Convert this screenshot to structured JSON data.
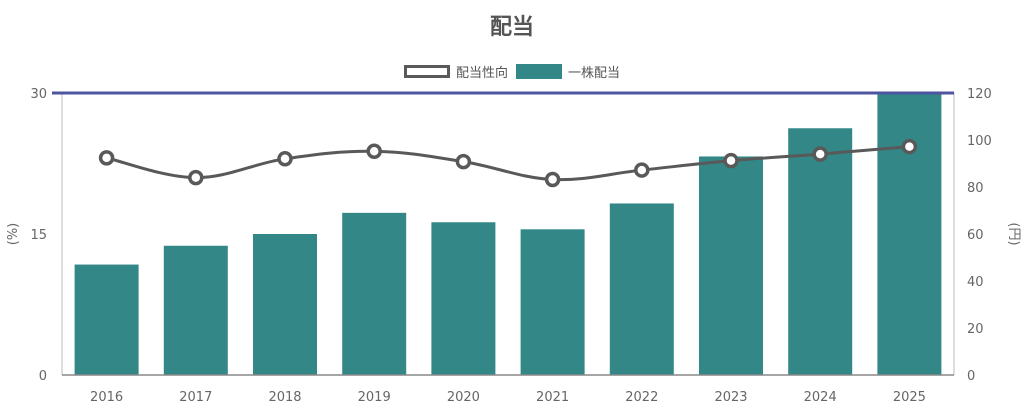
{
  "chart_data": {
    "type": "bar",
    "title": "配当",
    "categories": [
      "2016",
      "2017",
      "2018",
      "2019",
      "2020",
      "2021",
      "2022",
      "2023",
      "2024",
      "2025"
    ],
    "series": [
      {
        "name": "配当性向",
        "type": "line",
        "axis": "left",
        "values": [
          23.1,
          21.0,
          23.0,
          23.8,
          22.7,
          20.8,
          21.8,
          22.8,
          23.5,
          24.3
        ]
      },
      {
        "name": "一株配当",
        "type": "bar",
        "axis": "right",
        "values": [
          47,
          55,
          60,
          69,
          65,
          62,
          73,
          93,
          105,
          120
        ]
      }
    ],
    "y_left": {
      "label": "(%)",
      "ylim": [
        0,
        30
      ],
      "ticks": [
        "0",
        "15",
        "30"
      ]
    },
    "y_right": {
      "label": "(円)",
      "ylim": [
        0,
        120
      ],
      "ticks": [
        "0",
        "20",
        "40",
        "60",
        "80",
        "100",
        "120"
      ]
    },
    "grid": false,
    "legend_position": "top-center",
    "colors": {
      "bar": "#338887",
      "line": "#595959",
      "top_line": "#4e55a0",
      "text": "#666666"
    }
  }
}
